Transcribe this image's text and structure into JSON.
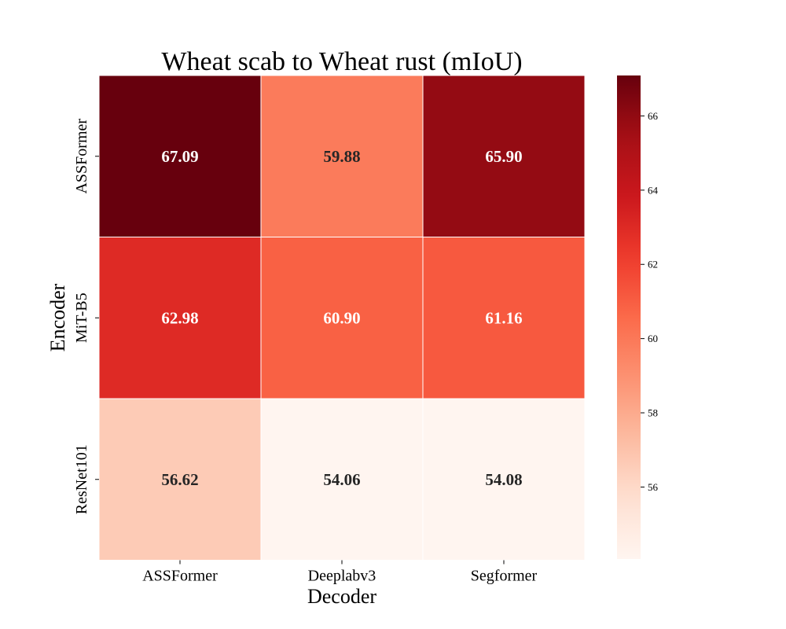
{
  "chart_data": {
    "type": "heatmap",
    "title": "Wheat scab to Wheat rust (mIoU)",
    "xlabel": "Decoder",
    "ylabel": "Encoder",
    "x_categories": [
      "ASSFormer",
      "Deeplabv3",
      "Segformer"
    ],
    "y_categories": [
      "ASSFormer",
      "MiT-B5",
      "ResNet101"
    ],
    "values": [
      [
        67.09,
        59.88,
        65.9
      ],
      [
        62.98,
        60.9,
        61.16
      ],
      [
        56.62,
        54.06,
        54.08
      ]
    ],
    "cell_labels": [
      [
        "67.09",
        "59.88",
        "65.90"
      ],
      [
        "62.98",
        "60.90",
        "61.16"
      ],
      [
        "56.62",
        "54.06",
        "54.08"
      ]
    ],
    "colorbar": {
      "range": [
        54.06,
        67.09
      ],
      "ticks": [
        56,
        58,
        60,
        62,
        64,
        66
      ],
      "colormap": "Reds"
    }
  }
}
